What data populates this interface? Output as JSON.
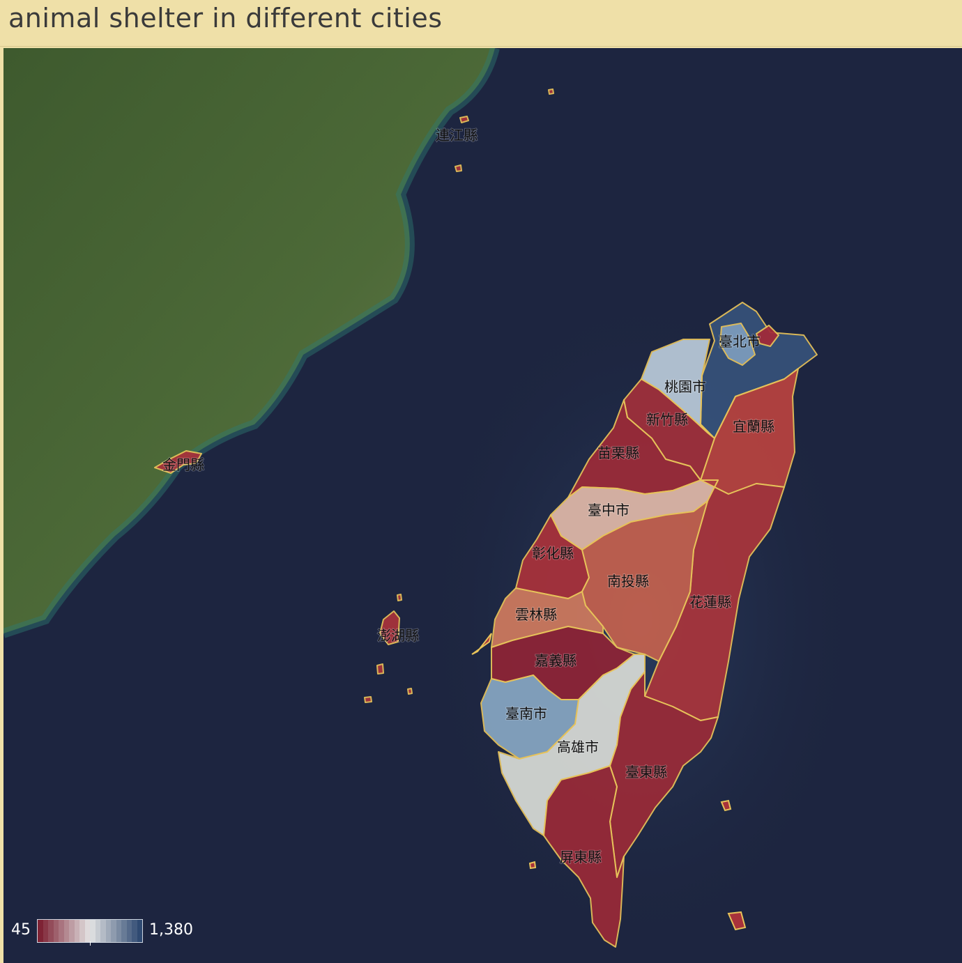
{
  "title": "animal shelter in different cities",
  "legend": {
    "min_label": "45",
    "max_label": "1,380",
    "min_value": 45,
    "max_value": 1380,
    "low_color": "#7e2335",
    "mid_color": "#e4e4e4",
    "high_color": "#2f4a72"
  },
  "regions": [
    {
      "id": "lienchiang",
      "name": "連江縣",
      "color": "#a8323b"
    },
    {
      "id": "kinmen",
      "name": "金門縣",
      "color": "#a8323b"
    },
    {
      "id": "penghu",
      "name": "澎湖縣",
      "color": "#a8323b"
    },
    {
      "id": "taipei",
      "name": "臺北市",
      "color": "#7d9cbc"
    },
    {
      "id": "newtaipei",
      "name": "",
      "color": "#36527a"
    },
    {
      "id": "keelung",
      "name": "",
      "color": "#a22a39"
    },
    {
      "id": "taoyuan",
      "name": "桃園市",
      "color": "#b9cad9"
    },
    {
      "id": "hsinchu",
      "name": "新竹縣",
      "color": "#a1303b"
    },
    {
      "id": "yilan",
      "name": "宜蘭縣",
      "color": "#b8433f"
    },
    {
      "id": "miaoli",
      "name": "苗栗縣",
      "color": "#9c2b38"
    },
    {
      "id": "taichung",
      "name": "臺中市",
      "color": "#e0b8a8"
    },
    {
      "id": "changhua",
      "name": "彰化縣",
      "color": "#a9323b"
    },
    {
      "id": "nantou",
      "name": "南投縣",
      "color": "#c4614e"
    },
    {
      "id": "hualien",
      "name": "花蓮縣",
      "color": "#a9353c"
    },
    {
      "id": "yunlin",
      "name": "雲林縣",
      "color": "#cf7a5e"
    },
    {
      "id": "chiayi",
      "name": "嘉義縣",
      "color": "#8e2436"
    },
    {
      "id": "tainan",
      "name": "臺南市",
      "color": "#87a6c2"
    },
    {
      "id": "kaohsiung",
      "name": "高雄市",
      "color": "#d8dbd6"
    },
    {
      "id": "taitung",
      "name": "臺東縣",
      "color": "#9a2b38"
    },
    {
      "id": "pingtung",
      "name": "屏東縣",
      "color": "#992a38"
    }
  ]
}
